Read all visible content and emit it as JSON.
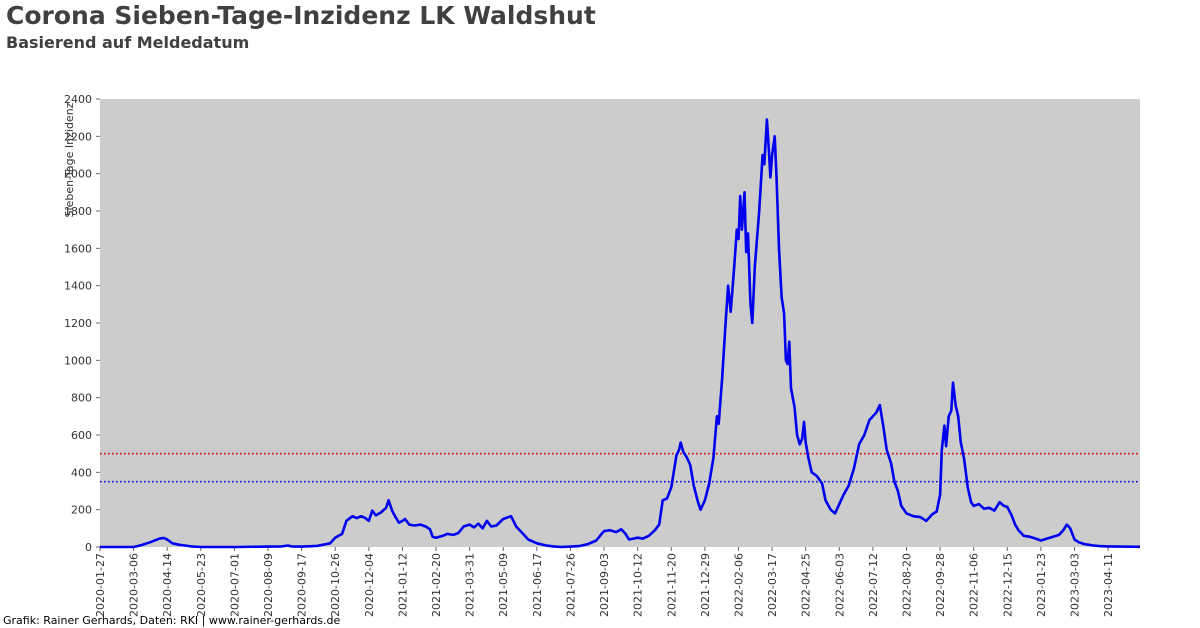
{
  "title": "Corona Sieben-Tage-Inzidenz LK Waldshut",
  "subtitle": "Basierend auf Meldedatum",
  "footer": "Grafik: Rainer Gerhards, Daten: RKI | www.rainer-gerhards.de",
  "colors": {
    "plot_bg": "#cccccc",
    "line": "#0000ee",
    "ref_red": "#dd0000",
    "ref_blue": "#0000dd",
    "title": "#404040"
  },
  "chart_data": {
    "type": "line",
    "title": "Corona Sieben-Tage-Inzidenz LK Waldshut",
    "subtitle": "Basierend auf Meldedatum",
    "xlabel": "",
    "ylabel": "Sieben-Tage Inzidenz",
    "ylim": [
      0,
      2400
    ],
    "xlim": [
      "2020-01-27",
      "2023-05-18"
    ],
    "yticks": [
      0,
      200,
      400,
      600,
      800,
      1000,
      1200,
      1400,
      1600,
      1800,
      2000,
      2200,
      2400
    ],
    "xticks": [
      "2020-01-27",
      "2020-03-06",
      "2020-04-14",
      "2020-05-23",
      "2020-07-01",
      "2020-08-09",
      "2020-09-17",
      "2020-10-26",
      "2020-12-04",
      "2021-01-12",
      "2021-02-20",
      "2021-03-31",
      "2021-05-09",
      "2021-06-17",
      "2021-07-26",
      "2021-09-03",
      "2021-10-12",
      "2021-11-20",
      "2021-12-29",
      "2022-02-06",
      "2022-03-17",
      "2022-04-25",
      "2022-06-03",
      "2022-07-12",
      "2022-08-20",
      "2022-09-28",
      "2022-11-06",
      "2022-12-15",
      "2023-01-23",
      "2023-03-03",
      "2023-04-11"
    ],
    "grid": false,
    "reference_lines": [
      {
        "value": 500,
        "color": "#dd0000",
        "style": "dotted"
      },
      {
        "value": 350,
        "color": "#0000dd",
        "style": "dotted"
      }
    ],
    "series": [
      {
        "color": "#0000ee",
        "points": [
          [
            "2020-01-27",
            0
          ],
          [
            "2020-03-06",
            0
          ],
          [
            "2020-03-15",
            10
          ],
          [
            "2020-03-25",
            25
          ],
          [
            "2020-04-05",
            45
          ],
          [
            "2020-04-10",
            48
          ],
          [
            "2020-04-14",
            40
          ],
          [
            "2020-04-20",
            20
          ],
          [
            "2020-04-28",
            12
          ],
          [
            "2020-05-05",
            8
          ],
          [
            "2020-05-12",
            3
          ],
          [
            "2020-05-23",
            0
          ],
          [
            "2020-07-01",
            0
          ],
          [
            "2020-08-09",
            2
          ],
          [
            "2020-08-25",
            3
          ],
          [
            "2020-09-01",
            8
          ],
          [
            "2020-09-05",
            3
          ],
          [
            "2020-09-17",
            2
          ],
          [
            "2020-10-05",
            6
          ],
          [
            "2020-10-20",
            20
          ],
          [
            "2020-10-26",
            50
          ],
          [
            "2020-11-03",
            70
          ],
          [
            "2020-11-08",
            140
          ],
          [
            "2020-11-15",
            165
          ],
          [
            "2020-11-20",
            155
          ],
          [
            "2020-11-25",
            165
          ],
          [
            "2020-11-30",
            155
          ],
          [
            "2020-12-04",
            140
          ],
          [
            "2020-12-08",
            195
          ],
          [
            "2020-12-12",
            170
          ],
          [
            "2020-12-18",
            185
          ],
          [
            "2020-12-24",
            210
          ],
          [
            "2020-12-27",
            250
          ],
          [
            "2020-12-31",
            195
          ],
          [
            "2021-01-04",
            160
          ],
          [
            "2021-01-08",
            130
          ],
          [
            "2021-01-12",
            140
          ],
          [
            "2021-01-15",
            150
          ],
          [
            "2021-01-20",
            120
          ],
          [
            "2021-01-26",
            115
          ],
          [
            "2021-02-02",
            120
          ],
          [
            "2021-02-08",
            110
          ],
          [
            "2021-02-13",
            95
          ],
          [
            "2021-02-16",
            55
          ],
          [
            "2021-02-20",
            50
          ],
          [
            "2021-02-28",
            60
          ],
          [
            "2021-03-05",
            70
          ],
          [
            "2021-03-12",
            65
          ],
          [
            "2021-03-18",
            75
          ],
          [
            "2021-03-24",
            110
          ],
          [
            "2021-03-31",
            120
          ],
          [
            "2021-04-05",
            105
          ],
          [
            "2021-04-10",
            125
          ],
          [
            "2021-04-15",
            100
          ],
          [
            "2021-04-20",
            140
          ],
          [
            "2021-04-25",
            110
          ],
          [
            "2021-05-01",
            115
          ],
          [
            "2021-05-09",
            150
          ],
          [
            "2021-05-15",
            160
          ],
          [
            "2021-05-18",
            165
          ],
          [
            "2021-05-24",
            110
          ],
          [
            "2021-06-01",
            70
          ],
          [
            "2021-06-07",
            40
          ],
          [
            "2021-06-17",
            20
          ],
          [
            "2021-06-28",
            8
          ],
          [
            "2021-07-06",
            3
          ],
          [
            "2021-07-15",
            0
          ],
          [
            "2021-07-26",
            2
          ],
          [
            "2021-08-05",
            5
          ],
          [
            "2021-08-15",
            15
          ],
          [
            "2021-08-25",
            35
          ],
          [
            "2021-09-01",
            75
          ],
          [
            "2021-09-03",
            85
          ],
          [
            "2021-09-10",
            90
          ],
          [
            "2021-09-17",
            80
          ],
          [
            "2021-09-23",
            95
          ],
          [
            "2021-09-28",
            70
          ],
          [
            "2021-10-02",
            40
          ],
          [
            "2021-10-07",
            45
          ],
          [
            "2021-10-12",
            50
          ],
          [
            "2021-10-18",
            45
          ],
          [
            "2021-10-25",
            60
          ],
          [
            "2021-11-01",
            90
          ],
          [
            "2021-11-06",
            120
          ],
          [
            "2021-11-10",
            250
          ],
          [
            "2021-11-15",
            260
          ],
          [
            "2021-11-20",
            320
          ],
          [
            "2021-11-26",
            490
          ],
          [
            "2021-11-29",
            520
          ],
          [
            "2021-12-01",
            560
          ],
          [
            "2021-12-04",
            510
          ],
          [
            "2021-12-08",
            480
          ],
          [
            "2021-12-12",
            440
          ],
          [
            "2021-12-16",
            330
          ],
          [
            "2021-12-21",
            240
          ],
          [
            "2021-12-24",
            200
          ],
          [
            "2021-12-29",
            250
          ],
          [
            "2022-01-03",
            340
          ],
          [
            "2022-01-08",
            480
          ],
          [
            "2022-01-12",
            700
          ],
          [
            "2022-01-14",
            660
          ],
          [
            "2022-01-18",
            900
          ],
          [
            "2022-01-22",
            1200
          ],
          [
            "2022-01-25",
            1400
          ],
          [
            "2022-01-28",
            1260
          ],
          [
            "2022-02-01",
            1500
          ],
          [
            "2022-02-04",
            1700
          ],
          [
            "2022-02-06",
            1650
          ],
          [
            "2022-02-08",
            1880
          ],
          [
            "2022-02-10",
            1700
          ],
          [
            "2022-02-13",
            1900
          ],
          [
            "2022-02-15",
            1580
          ],
          [
            "2022-02-17",
            1680
          ],
          [
            "2022-02-20",
            1300
          ],
          [
            "2022-02-22",
            1200
          ],
          [
            "2022-02-25",
            1500
          ],
          [
            "2022-03-02",
            1800
          ],
          [
            "2022-03-06",
            2100
          ],
          [
            "2022-03-08",
            2050
          ],
          [
            "2022-03-11",
            2290
          ],
          [
            "2022-03-13",
            2150
          ],
          [
            "2022-03-15",
            1980
          ],
          [
            "2022-03-17",
            2100
          ],
          [
            "2022-03-20",
            2200
          ],
          [
            "2022-03-22",
            2000
          ],
          [
            "2022-03-25",
            1600
          ],
          [
            "2022-03-28",
            1340
          ],
          [
            "2022-03-31",
            1250
          ],
          [
            "2022-04-02",
            1000
          ],
          [
            "2022-04-04",
            980
          ],
          [
            "2022-04-06",
            1100
          ],
          [
            "2022-04-08",
            850
          ],
          [
            "2022-04-12",
            750
          ],
          [
            "2022-04-15",
            600
          ],
          [
            "2022-04-18",
            550
          ],
          [
            "2022-04-21",
            580
          ],
          [
            "2022-04-23",
            670
          ],
          [
            "2022-04-25",
            560
          ],
          [
            "2022-04-28",
            480
          ],
          [
            "2022-05-02",
            400
          ],
          [
            "2022-05-08",
            380
          ],
          [
            "2022-05-14",
            340
          ],
          [
            "2022-05-18",
            250
          ],
          [
            "2022-05-24",
            200
          ],
          [
            "2022-05-29",
            180
          ],
          [
            "2022-06-03",
            230
          ],
          [
            "2022-06-08",
            280
          ],
          [
            "2022-06-14",
            330
          ],
          [
            "2022-06-20",
            420
          ],
          [
            "2022-06-26",
            550
          ],
          [
            "2022-07-02",
            600
          ],
          [
            "2022-07-08",
            680
          ],
          [
            "2022-07-12",
            700
          ],
          [
            "2022-07-16",
            720
          ],
          [
            "2022-07-20",
            760
          ],
          [
            "2022-07-24",
            650
          ],
          [
            "2022-07-28",
            520
          ],
          [
            "2022-08-02",
            450
          ],
          [
            "2022-08-06",
            350
          ],
          [
            "2022-08-10",
            300
          ],
          [
            "2022-08-14",
            220
          ],
          [
            "2022-08-20",
            180
          ],
          [
            "2022-08-28",
            165
          ],
          [
            "2022-09-05",
            160
          ],
          [
            "2022-09-12",
            140
          ],
          [
            "2022-09-19",
            175
          ],
          [
            "2022-09-24",
            190
          ],
          [
            "2022-09-28",
            280
          ],
          [
            "2022-09-30",
            520
          ],
          [
            "2022-10-03",
            650
          ],
          [
            "2022-10-05",
            540
          ],
          [
            "2022-10-08",
            700
          ],
          [
            "2022-10-11",
            730
          ],
          [
            "2022-10-13",
            880
          ],
          [
            "2022-10-16",
            760
          ],
          [
            "2022-10-19",
            700
          ],
          [
            "2022-10-22",
            560
          ],
          [
            "2022-10-26",
            470
          ],
          [
            "2022-10-30",
            320
          ],
          [
            "2022-11-03",
            240
          ],
          [
            "2022-11-06",
            220
          ],
          [
            "2022-11-12",
            230
          ],
          [
            "2022-11-18",
            205
          ],
          [
            "2022-11-24",
            210
          ],
          [
            "2022-11-30",
            195
          ],
          [
            "2022-12-06",
            240
          ],
          [
            "2022-12-11",
            220
          ],
          [
            "2022-12-15",
            215
          ],
          [
            "2022-12-20",
            170
          ],
          [
            "2022-12-24",
            120
          ],
          [
            "2022-12-28",
            90
          ],
          [
            "2023-01-03",
            60
          ],
          [
            "2023-01-10",
            55
          ],
          [
            "2023-01-17",
            45
          ],
          [
            "2023-01-23",
            35
          ],
          [
            "2023-01-30",
            45
          ],
          [
            "2023-02-06",
            55
          ],
          [
            "2023-02-13",
            65
          ],
          [
            "2023-02-18",
            90
          ],
          [
            "2023-02-22",
            120
          ],
          [
            "2023-02-26",
            100
          ],
          [
            "2023-03-03",
            40
          ],
          [
            "2023-03-08",
            25
          ],
          [
            "2023-03-15",
            15
          ],
          [
            "2023-03-25",
            8
          ],
          [
            "2023-04-01",
            5
          ],
          [
            "2023-04-11",
            3
          ],
          [
            "2023-04-25",
            2
          ],
          [
            "2023-05-18",
            1
          ]
        ]
      }
    ]
  }
}
